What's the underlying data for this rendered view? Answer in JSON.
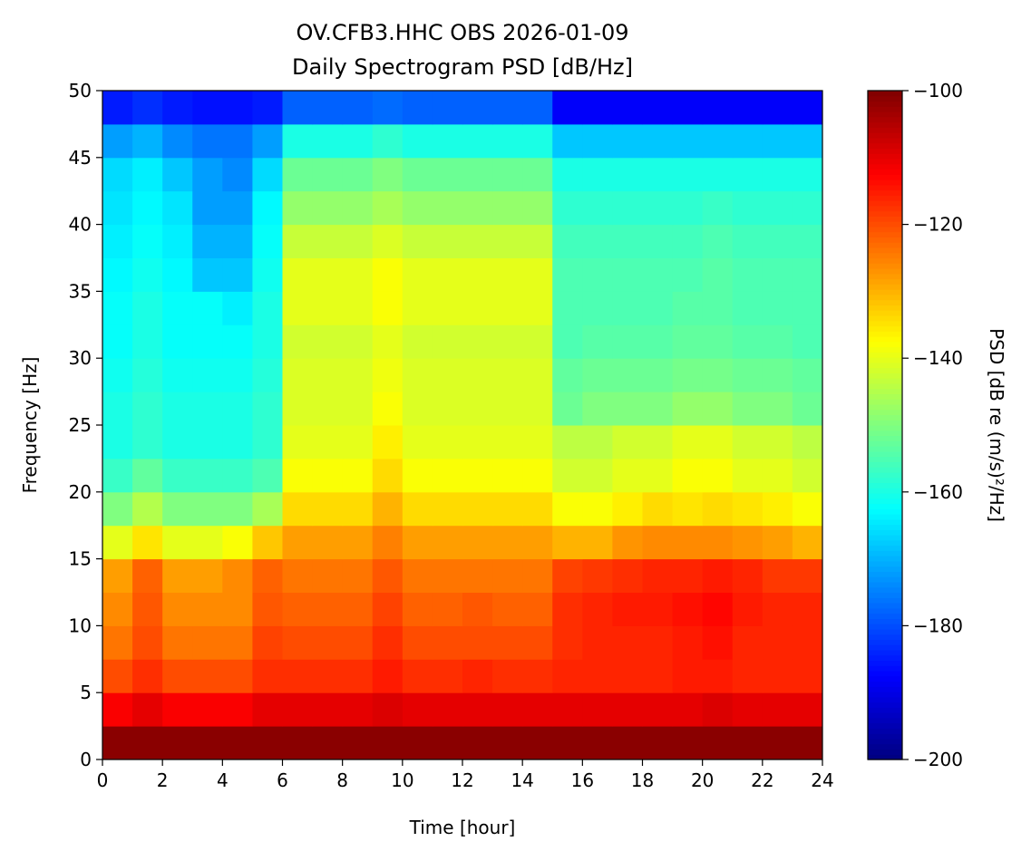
{
  "chart_data": {
    "type": "heatmap",
    "title": [
      "OV.CFB3.HHC OBS 2026-01-09",
      "Daily Spectrogram PSD [dB/Hz]"
    ],
    "xlabel": "Time [hour]",
    "ylabel": "Frequency [Hz]",
    "xlim": [
      0,
      24
    ],
    "ylim": [
      0,
      50
    ],
    "xticks": [
      "0",
      "2",
      "4",
      "6",
      "8",
      "10",
      "12",
      "14",
      "16",
      "18",
      "20",
      "22",
      "24"
    ],
    "yticks": [
      "0",
      "5",
      "10",
      "15",
      "20",
      "25",
      "30",
      "35",
      "40",
      "45",
      "50"
    ],
    "colorbar": {
      "label": "PSD [dB re (m/s)²/Hz]",
      "range": [
        -200,
        -100
      ],
      "ticks": [
        "−100",
        "−120",
        "−140",
        "−160",
        "−180",
        "−200"
      ],
      "colormap": "jet"
    },
    "time_bin_hours": 1,
    "freq_bin_hz": 2.5,
    "psd_db_rows_low_to_high_freq": [
      [
        -101,
        -101,
        -101,
        -101,
        -101,
        -101,
        -101,
        -101,
        -101,
        -101,
        -101,
        -101,
        -101,
        -101,
        -101,
        -101,
        -101,
        -101,
        -101,
        -101,
        -101,
        -101,
        -101,
        -101
      ],
      [
        -112,
        -110,
        -112,
        -112,
        -112,
        -110,
        -110,
        -110,
        -110,
        -109,
        -110,
        -110,
        -110,
        -110,
        -110,
        -110,
        -110,
        -110,
        -110,
        -110,
        -109,
        -110,
        -110,
        -110
      ],
      [
        -120,
        -117,
        -120,
        -120,
        -120,
        -117,
        -117,
        -117,
        -117,
        -115,
        -117,
        -117,
        -116,
        -117,
        -117,
        -116,
        -116,
        -116,
        -116,
        -115,
        -115,
        -116,
        -116,
        -116
      ],
      [
        -124,
        -120,
        -124,
        -124,
        -124,
        -119,
        -120,
        -120,
        -120,
        -117,
        -120,
        -120,
        -120,
        -120,
        -120,
        -117,
        -116,
        -116,
        -116,
        -115,
        -114,
        -116,
        -116,
        -116
      ],
      [
        -126,
        -121,
        -126,
        -126,
        -126,
        -121,
        -122,
        -122,
        -122,
        -119,
        -122,
        -122,
        -121,
        -122,
        -122,
        -117,
        -116,
        -115,
        -115,
        -114,
        -113,
        -115,
        -116,
        -116
      ],
      [
        -128,
        -122,
        -128,
        -128,
        -126,
        -122,
        -124,
        -124,
        -124,
        -121,
        -124,
        -124,
        -124,
        -124,
        -124,
        -119,
        -118,
        -117,
        -116,
        -116,
        -115,
        -116,
        -118,
        -118
      ],
      [
        -140,
        -135,
        -140,
        -140,
        -138,
        -132,
        -128,
        -128,
        -128,
        -125,
        -128,
        -128,
        -128,
        -128,
        -128,
        -130,
        -130,
        -127,
        -126,
        -126,
        -126,
        -127,
        -128,
        -130
      ],
      [
        -150,
        -145,
        -150,
        -150,
        -150,
        -146,
        -134,
        -134,
        -134,
        -130,
        -134,
        -134,
        -134,
        -134,
        -134,
        -138,
        -138,
        -136,
        -134,
        -135,
        -134,
        -135,
        -136,
        -138
      ],
      [
        -157,
        -153,
        -157,
        -157,
        -157,
        -155,
        -138,
        -138,
        -138,
        -134,
        -138,
        -138,
        -138,
        -138,
        -138,
        -142,
        -142,
        -140,
        -140,
        -138,
        -138,
        -140,
        -140,
        -142
      ],
      [
        -160,
        -158,
        -160,
        -160,
        -160,
        -158,
        -140,
        -140,
        -140,
        -136,
        -140,
        -140,
        -140,
        -140,
        -140,
        -144,
        -144,
        -142,
        -142,
        -140,
        -140,
        -142,
        -142,
        -144
      ],
      [
        -160,
        -158,
        -160,
        -160,
        -160,
        -158,
        -141,
        -141,
        -141,
        -138,
        -141,
        -141,
        -141,
        -141,
        -141,
        -152,
        -150,
        -150,
        -150,
        -148,
        -148,
        -150,
        -150,
        -152
      ],
      [
        -161,
        -159,
        -161,
        -161,
        -161,
        -159,
        -141,
        -141,
        -141,
        -139,
        -141,
        -141,
        -141,
        -141,
        -141,
        -153,
        -152,
        -152,
        -152,
        -151,
        -151,
        -152,
        -152,
        -153
      ],
      [
        -162,
        -160,
        -162,
        -162,
        -162,
        -160,
        -142,
        -142,
        -142,
        -140,
        -142,
        -142,
        -142,
        -142,
        -142,
        -155,
        -154,
        -154,
        -154,
        -153,
        -153,
        -154,
        -154,
        -155
      ],
      [
        -162,
        -160,
        -162,
        -162,
        -164,
        -160,
        -140,
        -140,
        -140,
        -138,
        -140,
        -140,
        -140,
        -140,
        -140,
        -155,
        -155,
        -155,
        -155,
        -154,
        -154,
        -155,
        -155,
        -155
      ],
      [
        -163,
        -161,
        -163,
        -168,
        -168,
        -161,
        -140,
        -140,
        -140,
        -138,
        -140,
        -140,
        -140,
        -140,
        -140,
        -155,
        -155,
        -155,
        -155,
        -155,
        -154,
        -155,
        -155,
        -155
      ],
      [
        -164,
        -162,
        -164,
        -170,
        -170,
        -162,
        -143,
        -143,
        -143,
        -141,
        -143,
        -143,
        -143,
        -143,
        -143,
        -156,
        -156,
        -156,
        -156,
        -156,
        -155,
        -156,
        -156,
        -156
      ],
      [
        -165,
        -163,
        -165,
        -172,
        -172,
        -163,
        -148,
        -148,
        -148,
        -146,
        -148,
        -148,
        -148,
        -148,
        -148,
        -158,
        -158,
        -158,
        -158,
        -158,
        -157,
        -158,
        -158,
        -158
      ],
      [
        -166,
        -164,
        -168,
        -172,
        -174,
        -166,
        -152,
        -152,
        -152,
        -150,
        -152,
        -152,
        -152,
        -152,
        -152,
        -160,
        -160,
        -160,
        -160,
        -160,
        -160,
        -160,
        -160,
        -160
      ],
      [
        -172,
        -170,
        -174,
        -176,
        -176,
        -172,
        -160,
        -160,
        -160,
        -158,
        -160,
        -160,
        -160,
        -160,
        -160,
        -168,
        -168,
        -168,
        -168,
        -168,
        -168,
        -168,
        -168,
        -168
      ],
      [
        -185,
        -183,
        -185,
        -186,
        -186,
        -185,
        -178,
        -178,
        -178,
        -177,
        -178,
        -178,
        -178,
        -178,
        -178,
        -188,
        -188,
        -188,
        -188,
        -188,
        -188,
        -188,
        -188,
        -188
      ]
    ]
  }
}
